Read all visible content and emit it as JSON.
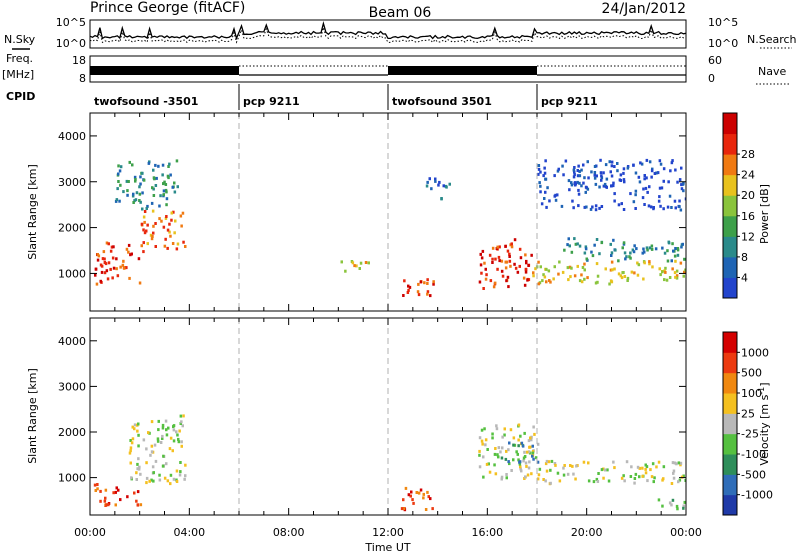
{
  "header": {
    "station": "Prince George (fitACF)",
    "beam": "Beam 06",
    "date": "24/Jan/2012"
  },
  "left_labels": {
    "nsky": "N.Sky",
    "freq": "Freq.",
    "mhz": "[MHz]",
    "cpid": "CPID"
  },
  "right_labels": {
    "nsearch": "N.Search",
    "nave": "Nave"
  },
  "noise_axis": {
    "left_ticks": [
      "10^5",
      "10^0"
    ],
    "right_ticks": [
      "10^5",
      "10^0"
    ]
  },
  "freq_axis": {
    "left_ticks": [
      "18",
      "8"
    ],
    "right_ticks": [
      "60",
      "0"
    ]
  },
  "cpid_segments": [
    {
      "start": 0,
      "end": 6,
      "label": "twofsound -3501"
    },
    {
      "start": 6,
      "end": 12,
      "label": "pcp 9211"
    },
    {
      "start": 12,
      "end": 18,
      "label": "twofsound 3501"
    },
    {
      "start": 18,
      "end": 24,
      "label": "pcp 9211"
    }
  ],
  "chart_data": [
    {
      "type": "heatmap",
      "panel": "power",
      "ylabel": "Slant Range [km]",
      "ylim": [
        180,
        4500
      ],
      "yticks": [
        1000,
        2000,
        3000,
        4000
      ],
      "xlim": [
        0,
        24
      ],
      "colorbar": {
        "label": "Power [dB]",
        "ticks": [
          "4",
          "8",
          "12",
          "16",
          "20",
          "24",
          "28"
        ],
        "colors": [
          "#2244cc",
          "#1e64b4",
          "#2a8a8a",
          "#3da04a",
          "#8ac43c",
          "#e8c21e",
          "#f07a12",
          "#e8260c",
          "#cc0000"
        ]
      },
      "echo_regions": [
        {
          "t0": 0.1,
          "t1": 2.0,
          "r0": 800,
          "r1": 1700,
          "level": 7
        },
        {
          "t0": 2.0,
          "t1": 3.8,
          "r0": 1500,
          "r1": 2400,
          "level": 6
        },
        {
          "t0": 1.0,
          "t1": 3.5,
          "r0": 2400,
          "r1": 3500,
          "level": 2
        },
        {
          "t0": 10.0,
          "t1": 11.2,
          "r0": 1000,
          "r1": 1300,
          "level": 5
        },
        {
          "t0": 12.5,
          "t1": 13.8,
          "r0": 400,
          "r1": 900,
          "level": 7
        },
        {
          "t0": 13.5,
          "t1": 14.5,
          "r0": 2600,
          "r1": 3100,
          "level": 1
        },
        {
          "t0": 15.6,
          "t1": 17.8,
          "r0": 700,
          "r1": 1800,
          "level": 7
        },
        {
          "t0": 17.8,
          "t1": 24.0,
          "r0": 800,
          "r1": 1300,
          "level": 5
        },
        {
          "t0": 19.0,
          "t1": 24.0,
          "r0": 1300,
          "r1": 1800,
          "level": 2
        },
        {
          "t0": 18.0,
          "t1": 24.0,
          "r0": 2400,
          "r1": 3500,
          "level": 0
        }
      ]
    },
    {
      "type": "heatmap",
      "panel": "velocity",
      "ylabel": "Slant Range [km]",
      "ylim": [
        180,
        4500
      ],
      "yticks": [
        1000,
        2000,
        3000,
        4000
      ],
      "xlim": [
        0,
        24
      ],
      "colorbar": {
        "label": "Velocity [m s^-1]",
        "ticks": [
          "1000",
          "500",
          "100",
          "25",
          "-25",
          "-100",
          "-500",
          "-1000"
        ],
        "colors": [
          "#1f3aa8",
          "#2f6db8",
          "#2e8e5a",
          "#55c040",
          "#b8b8b8",
          "#f4c020",
          "#f08810",
          "#ec3a10",
          "#d40000"
        ]
      },
      "echo_regions": [
        {
          "t0": 0.1,
          "t1": 2.0,
          "r0": 400,
          "r1": 900,
          "level": 7
        },
        {
          "t0": 1.5,
          "t1": 3.8,
          "r0": 900,
          "r1": 2400,
          "level": 4
        },
        {
          "t0": 12.5,
          "t1": 14.0,
          "r0": 300,
          "r1": 800,
          "level": 7
        },
        {
          "t0": 15.6,
          "t1": 18.0,
          "r0": 1000,
          "r1": 2200,
          "level": 4
        },
        {
          "t0": 16.5,
          "t1": 18.0,
          "r0": 1300,
          "r1": 1800,
          "level": 2
        },
        {
          "t0": 18.0,
          "t1": 24.0,
          "r0": 900,
          "r1": 1400,
          "level": 4
        },
        {
          "t0": 22.8,
          "t1": 24.0,
          "r0": 250,
          "r1": 550,
          "level": 3
        }
      ]
    }
  ],
  "time_axis": {
    "label": "Time UT",
    "ticks": [
      "00:00",
      "04:00",
      "08:00",
      "12:00",
      "16:00",
      "20:00",
      "00:00"
    ]
  }
}
